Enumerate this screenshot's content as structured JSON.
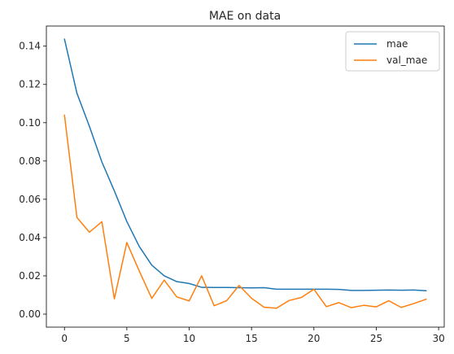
{
  "chart_data": {
    "type": "line",
    "title": "MAE on data",
    "xlabel": "",
    "ylabel": "",
    "xlim": [
      -1.45,
      30.45
    ],
    "ylim": [
      -0.0068,
      0.1505
    ],
    "xticks": [
      0,
      5,
      10,
      15,
      20,
      25,
      30
    ],
    "yticks": [
      0.0,
      0.02,
      0.04,
      0.06,
      0.08,
      0.1,
      0.12,
      0.14
    ],
    "ytick_labels": [
      "0.00",
      "0.02",
      "0.04",
      "0.06",
      "0.08",
      "0.10",
      "0.12",
      "0.14"
    ],
    "grid": false,
    "legend_position": "top-right",
    "x": [
      0,
      1,
      2,
      3,
      4,
      5,
      6,
      7,
      8,
      9,
      10,
      11,
      12,
      13,
      14,
      15,
      16,
      17,
      18,
      19,
      20,
      21,
      22,
      23,
      24,
      25,
      26,
      27,
      28,
      29
    ],
    "series": [
      {
        "name": "mae",
        "color": "#1f77b4",
        "values": [
          0.1437,
          0.1154,
          0.0981,
          0.0795,
          0.0644,
          0.0484,
          0.0353,
          0.0256,
          0.02,
          0.017,
          0.016,
          0.014,
          0.0139,
          0.0139,
          0.0138,
          0.0137,
          0.0138,
          0.013,
          0.013,
          0.013,
          0.013,
          0.013,
          0.0129,
          0.0124,
          0.0124,
          0.0125,
          0.0126,
          0.0125,
          0.0126,
          0.0122
        ]
      },
      {
        "name": "val_mae",
        "color": "#ff7f0e",
        "values": [
          0.104,
          0.0505,
          0.0428,
          0.0483,
          0.008,
          0.0374,
          0.0225,
          0.0082,
          0.0178,
          0.009,
          0.0069,
          0.02,
          0.0044,
          0.007,
          0.015,
          0.0083,
          0.0036,
          0.0031,
          0.0071,
          0.0087,
          0.013,
          0.0039,
          0.006,
          0.0034,
          0.0046,
          0.0038,
          0.007,
          0.0035,
          0.0055,
          0.0078
        ]
      }
    ]
  }
}
